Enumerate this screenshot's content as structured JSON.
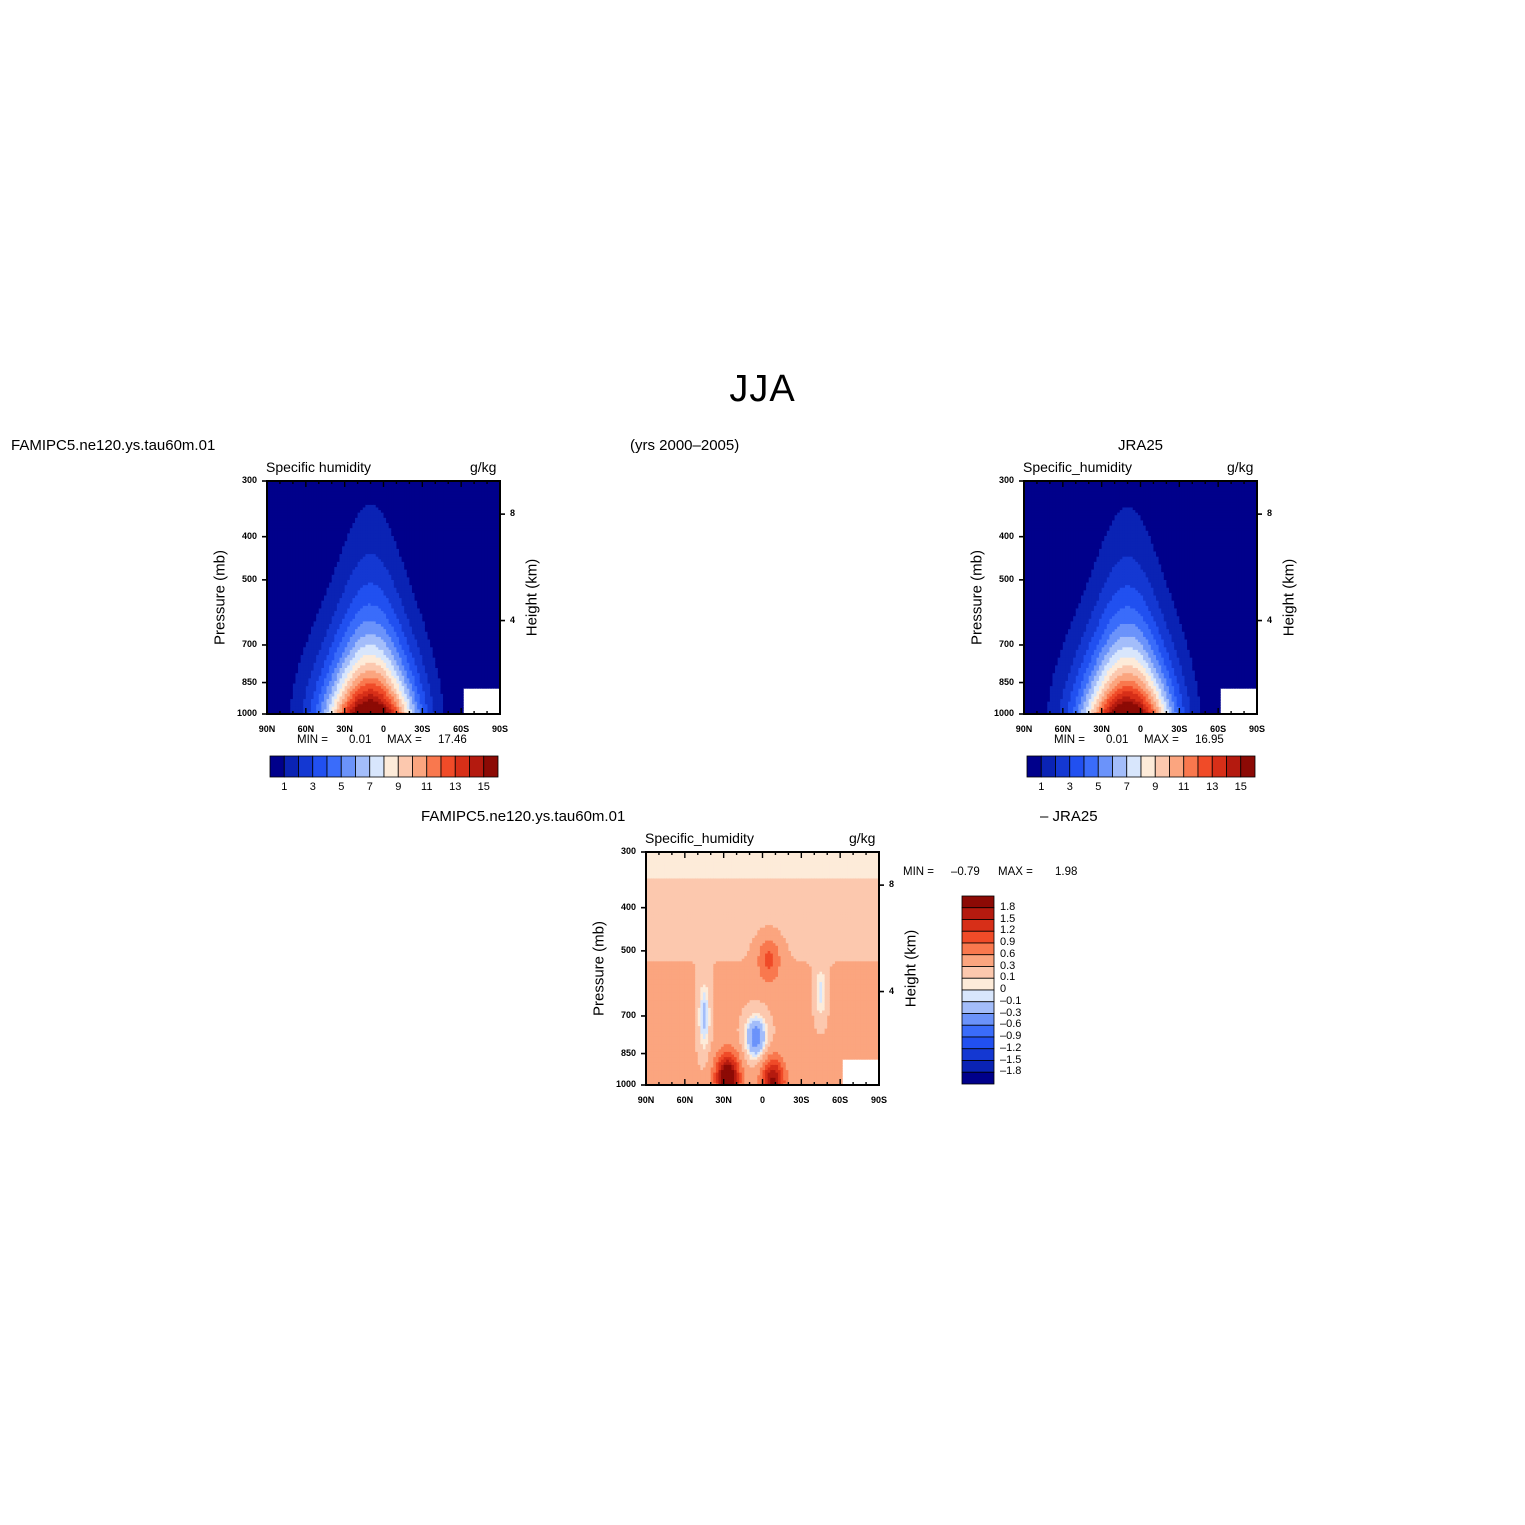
{
  "page": {
    "title": "JJA",
    "subtitle": "(yrs 2000–2005)",
    "left_header": "FAMIPC5.ne120.ys.tau60m.01",
    "right_header": "JRA25",
    "diff_header_left": "FAMIPC5.ne120.ys.tau60m.01",
    "diff_header_right": "– JRA25"
  },
  "colors": {
    "sequential_scale": [
      "#00008b",
      "#0a23b4",
      "#1438d2",
      "#2150f0",
      "#3a6cfa",
      "#6b93fa",
      "#a3bdfa",
      "#d8e6fc",
      "#fdebd9",
      "#fcc8ae",
      "#fba57f",
      "#f9784e",
      "#f04b28",
      "#d72f18",
      "#b41a0f",
      "#8c0a05"
    ],
    "difference_scale": [
      "#00008b",
      "#0a23b4",
      "#1438d2",
      "#2150f0",
      "#3a6cfa",
      "#6b93fa",
      "#a3bdfa",
      "#d8e6fc",
      "#fdebd9",
      "#fcc8ae",
      "#fba57f",
      "#f9784e",
      "#f04b28",
      "#d72f18",
      "#b41a0f",
      "#8c0a05"
    ]
  },
  "chart_data": [
    {
      "type": "heatmap",
      "panel": "model",
      "left_title": "Specific humidity",
      "right_title": "g/kg",
      "ylabel": "Pressure (mb)",
      "ylabel_right": "Height (km)",
      "x_ticks": [
        "90N",
        "60N",
        "30N",
        "0",
        "30S",
        "60S",
        "90S"
      ],
      "y_ticks": [
        "300",
        "400",
        "500",
        "700",
        "850",
        "1000"
      ],
      "y_ticks_right": [
        "8",
        "4"
      ],
      "ylim": [
        1000,
        300
      ],
      "min_label": "MIN =",
      "min_value": "0.01",
      "max_label": "MAX =",
      "max_value": "17.46",
      "colorbar_labels": [
        "1",
        "3",
        "5",
        "7",
        "9",
        "11",
        "13",
        "15"
      ],
      "field": {
        "peak_lat": 10,
        "peak_value": 17.46,
        "surface_dry_value": 3.0
      }
    },
    {
      "type": "heatmap",
      "panel": "obs",
      "left_title": "Specific_humidity",
      "right_title": "g/kg",
      "ylabel": "Pressure (mb)",
      "ylabel_right": "Height (km)",
      "x_ticks": [
        "90N",
        "60N",
        "30N",
        "0",
        "30S",
        "60S",
        "90S"
      ],
      "y_ticks": [
        "300",
        "400",
        "500",
        "700",
        "850",
        "1000"
      ],
      "y_ticks_right": [
        "8",
        "4"
      ],
      "ylim": [
        1000,
        300
      ],
      "min_label": "MIN =",
      "min_value": "0.01",
      "max_label": "MAX =",
      "max_value": "16.95",
      "colorbar_labels": [
        "1",
        "3",
        "5",
        "7",
        "9",
        "11",
        "13",
        "15"
      ],
      "field": {
        "peak_lat": 10,
        "peak_value": 16.95,
        "surface_dry_value": 3.0
      }
    },
    {
      "type": "heatmap",
      "panel": "difference",
      "left_title": "Specific_humidity",
      "right_title": "g/kg",
      "ylabel": "Pressure (mb)",
      "ylabel_right": "Height (km)",
      "x_ticks": [
        "90N",
        "60N",
        "30N",
        "0",
        "30S",
        "60S",
        "90S"
      ],
      "y_ticks": [
        "300",
        "400",
        "500",
        "700",
        "850",
        "1000"
      ],
      "y_ticks_right": [
        "8",
        "4"
      ],
      "ylim": [
        1000,
        300
      ],
      "min_label": "MIN =",
      "min_value": "–0.79",
      "max_label": "MAX =",
      "max_value": "1.98",
      "colorbar_labels": [
        "1.8",
        "1.5",
        "1.2",
        "0.9",
        "0.6",
        "0.3",
        "0.1",
        "0",
        "–0.1",
        "–0.3",
        "–0.6",
        "–0.9",
        "–1.2",
        "–1.5",
        "–1.8"
      ],
      "features": [
        {
          "name": "equatorial-dry-anomaly",
          "lat": 5,
          "p": 780,
          "value": -0.79
        },
        {
          "name": "subtropical-moist-anomaly",
          "lat": 27,
          "p": 960,
          "value": 1.98
        },
        {
          "name": "southern-subtropical-moist-anomaly",
          "lat": -8,
          "p": 980,
          "value": 1.5
        },
        {
          "name": "upper-moist-anomaly",
          "lat": -5,
          "p": 520,
          "value": 0.7
        }
      ]
    }
  ]
}
